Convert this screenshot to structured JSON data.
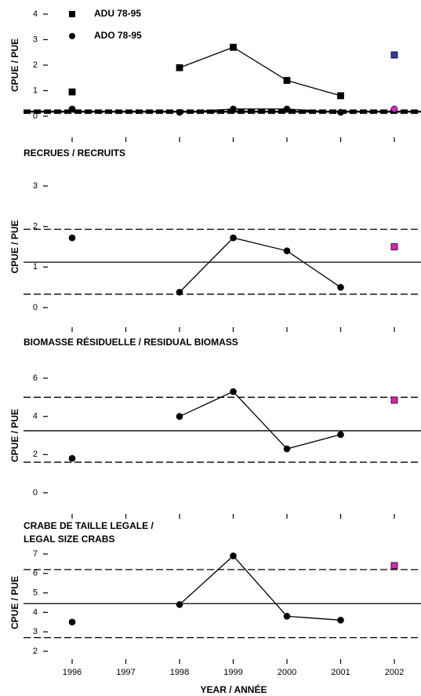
{
  "chart_data": [
    {
      "type": "line",
      "ylabel": "CPUE / PUE",
      "ylim": [
        0,
        4
      ],
      "yticks": [
        0,
        1,
        2,
        3,
        4
      ],
      "series": [
        {
          "name": "ADU 78-95",
          "color": "#000000",
          "marker": "square",
          "values": [
            0.95,
            null,
            1.9,
            2.7,
            1.4,
            0.8,
            null
          ]
        },
        {
          "name": "ADO 78-95",
          "color": "#000000",
          "marker": "circle",
          "values": [
            0.28,
            null,
            0.15,
            0.28,
            0.28,
            0.15,
            null
          ]
        },
        {
          "color": "#2a3caa",
          "marker": "square",
          "values": [
            null,
            null,
            null,
            null,
            null,
            null,
            2.4
          ]
        },
        {
          "color": "#e020c0",
          "marker": "circle",
          "values": [
            null,
            null,
            null,
            null,
            null,
            null,
            0.28
          ]
        }
      ],
      "hlines": [
        {
          "value": 0.24,
          "style": "dashed"
        },
        {
          "value": 0.19,
          "style": "solid"
        },
        {
          "value": 0.14,
          "style": "dashed"
        },
        {
          "value": 0.21,
          "style": "dashed"
        },
        {
          "value": 0.16,
          "style": "solid"
        },
        {
          "value": 0.11,
          "style": "dashed"
        }
      ]
    },
    {
      "type": "line",
      "title": [
        "RECRUES / RECRUITS"
      ],
      "ylabel": "CPUE / PUE",
      "ylim": [
        0,
        3
      ],
      "yticks": [
        0,
        1,
        2,
        3
      ],
      "series": [
        {
          "color": "#000000",
          "marker": "circle",
          "values": [
            1.72,
            null,
            0.38,
            1.72,
            1.4,
            0.5,
            null
          ]
        },
        {
          "color": "#e020c0",
          "marker": "square",
          "values": [
            null,
            null,
            null,
            null,
            null,
            null,
            1.5
          ]
        }
      ],
      "hlines": [
        {
          "value": 1.93,
          "style": "dashed"
        },
        {
          "value": 1.12,
          "style": "solid"
        },
        {
          "value": 0.33,
          "style": "dashed"
        }
      ]
    },
    {
      "type": "line",
      "title": [
        "BIOMASSE RÉSIDUELLE / RESIDUAL BIOMASS"
      ],
      "ylabel": "CPUE / PUE",
      "ylim": [
        0,
        6
      ],
      "yticks": [
        0,
        2,
        4,
        6
      ],
      "series": [
        {
          "color": "#000000",
          "marker": "circle",
          "values": [
            1.8,
            null,
            4.0,
            5.3,
            2.3,
            3.05,
            null
          ]
        },
        {
          "color": "#e020c0",
          "marker": "square",
          "values": [
            null,
            null,
            null,
            null,
            null,
            null,
            4.85
          ]
        }
      ],
      "hlines": [
        {
          "value": 5.0,
          "style": "dashed"
        },
        {
          "value": 3.25,
          "style": "solid"
        },
        {
          "value": 1.6,
          "style": "dashed"
        }
      ]
    },
    {
      "type": "line",
      "title": [
        "CRABE DE TAILLE LEGALE /",
        "LEGAL SIZE CRABS"
      ],
      "ylabel": "CPUE / PUE",
      "xlabel": "YEAR / ANNÉE",
      "categories": [
        "1996",
        "1997",
        "1998",
        "1999",
        "2000",
        "2001",
        "2002"
      ],
      "ylim": [
        2,
        7
      ],
      "yticks": [
        2,
        3,
        4,
        5,
        6,
        7
      ],
      "series": [
        {
          "color": "#000000",
          "marker": "circle",
          "values": [
            3.5,
            null,
            4.4,
            6.9,
            3.8,
            3.6,
            null
          ]
        },
        {
          "color": "#e020c0",
          "marker": "square",
          "values": [
            null,
            null,
            null,
            null,
            null,
            null,
            6.4
          ]
        }
      ],
      "hlines": [
        {
          "value": 6.2,
          "style": "dashed"
        },
        {
          "value": 4.45,
          "style": "solid"
        },
        {
          "value": 2.7,
          "style": "dashed"
        }
      ]
    }
  ]
}
